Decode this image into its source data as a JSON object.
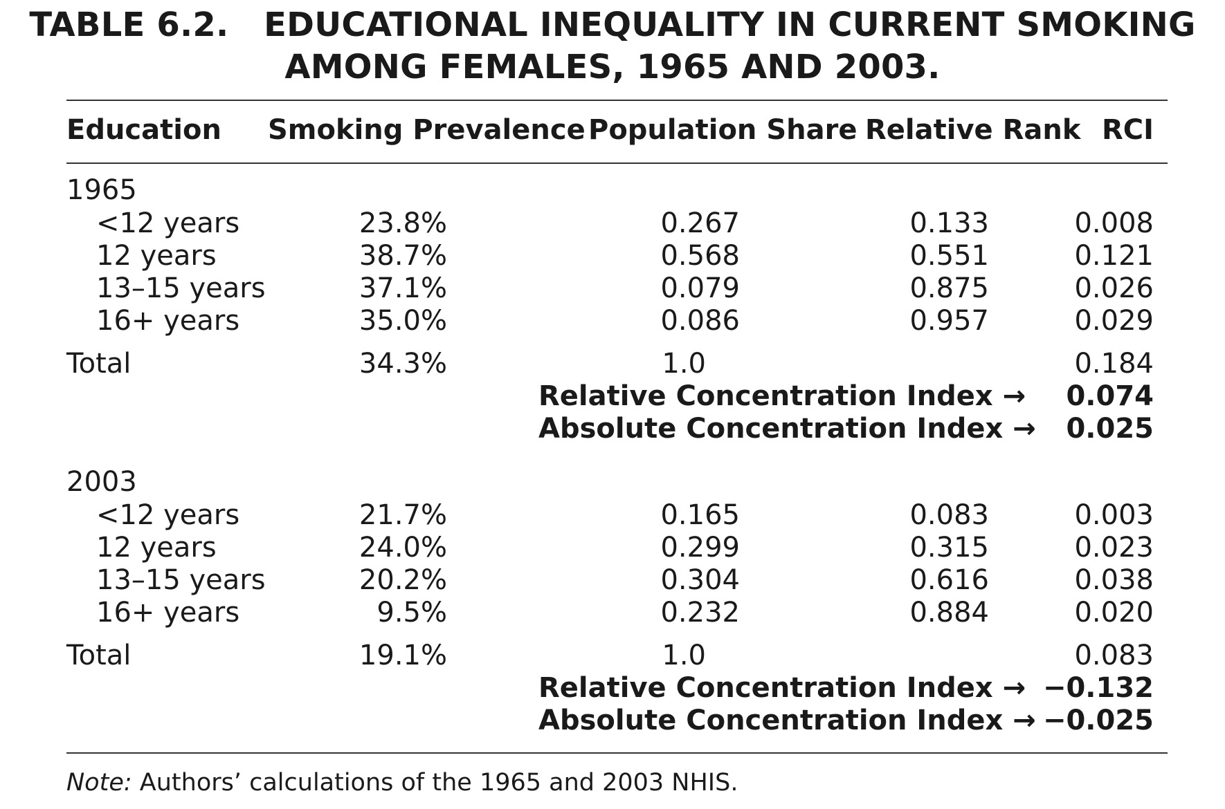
{
  "title": {
    "line1": "TABLE 6.2.   EDUCATIONAL INEQUALITY IN CURRENT SMOKING",
    "line2": "AMONG FEMALES, 1965 AND 2003."
  },
  "columns": [
    "Education",
    "Smoking Prevalence",
    "Population Share",
    "Relative Rank",
    "RCI"
  ],
  "sections": [
    {
      "year": "1965",
      "rows": [
        {
          "education": "<12 years",
          "prevalence": "23.8%",
          "share": "0.267",
          "rank": "0.133",
          "rci": "0.008"
        },
        {
          "education": "12 years",
          "prevalence": "38.7%",
          "share": "0.568",
          "rank": "0.551",
          "rci": "0.121"
        },
        {
          "education": "13–15 years",
          "prevalence": "37.1%",
          "share": "0.079",
          "rank": "0.875",
          "rci": "0.026"
        },
        {
          "education": "16+ years",
          "prevalence": "35.0%",
          "share": "0.086",
          "rank": "0.957",
          "rci": "0.029"
        }
      ],
      "total": {
        "label": "Total",
        "prevalence": "34.3%",
        "share": "1.0",
        "rci": "0.184"
      },
      "relative_label": "Relative Concentration Index →",
      "relative_value": "0.074",
      "absolute_label": "Absolute Concentration Index →",
      "absolute_value": "0.025"
    },
    {
      "year": "2003",
      "rows": [
        {
          "education": "<12 years",
          "prevalence": "21.7%",
          "share": "0.165",
          "rank": "0.083",
          "rci": "0.003"
        },
        {
          "education": "12 years",
          "prevalence": "24.0%",
          "share": "0.299",
          "rank": "0.315",
          "rci": "0.023"
        },
        {
          "education": "13–15 years",
          "prevalence": "20.2%",
          "share": "0.304",
          "rank": "0.616",
          "rci": "0.038"
        },
        {
          "education": "16+ years",
          "prevalence": "9.5%",
          "share": "0.232",
          "rank": "0.884",
          "rci": "0.020"
        }
      ],
      "total": {
        "label": "Total",
        "prevalence": "19.1%",
        "share": "1.0",
        "rci": "0.083"
      },
      "relative_label": "Relative Concentration Index →",
      "relative_value": "−0.132",
      "absolute_label": "Absolute Concentration Index →",
      "absolute_value": "−0.025"
    }
  ],
  "note": {
    "label": "Note:",
    "text": " Authors’ calculations of the 1965 and 2003 NHIS."
  }
}
